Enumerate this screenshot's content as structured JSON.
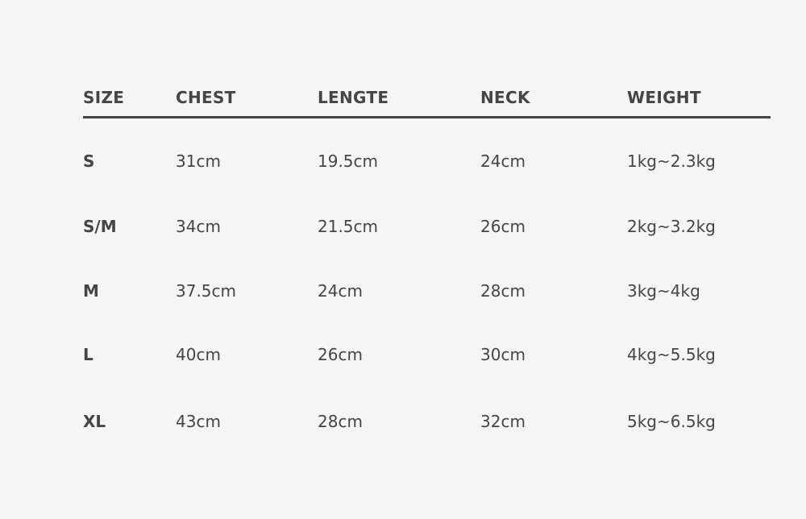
{
  "table": {
    "headers": [
      "SIZE",
      "CHEST",
      "LENGTE",
      "NECK",
      "WEIGHT"
    ],
    "rows": [
      [
        "S",
        "31cm",
        "19.5cm",
        "24cm",
        "1kg~2.3kg"
      ],
      [
        "S/M",
        "34cm",
        "21.5cm",
        "26cm",
        "2kg~3.2kg"
      ],
      [
        "M",
        "37.5cm",
        "24cm",
        "28cm",
        "3kg~4kg"
      ],
      [
        "L",
        "40cm",
        "26cm",
        "30cm",
        "4kg~5.5kg"
      ],
      [
        "XL",
        "43cm",
        "28cm",
        "32cm",
        "5kg~6.5kg"
      ]
    ]
  },
  "colors": {
    "background": "#f5f5f5",
    "text": "#454545",
    "rule": "#444444"
  }
}
